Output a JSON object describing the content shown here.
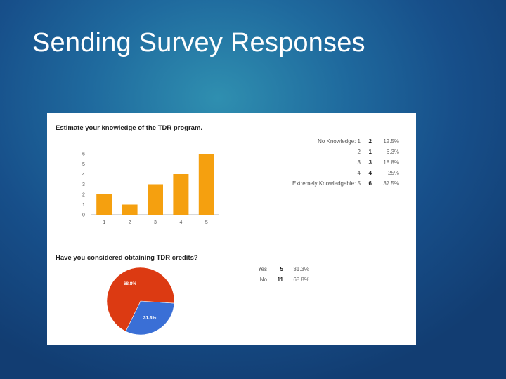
{
  "slide": {
    "title": "Sending Survey Responses"
  },
  "chart_data": [
    {
      "type": "bar",
      "title": "Estimate your knowledge of the TDR program.",
      "categories": [
        "1",
        "2",
        "3",
        "4",
        "5"
      ],
      "values": [
        2,
        1,
        3,
        4,
        6
      ],
      "yticks": [
        "0",
        "1",
        "2",
        "3",
        "4",
        "5",
        "6"
      ],
      "ylim": [
        0,
        6
      ],
      "color": "#f5a00f",
      "summary": [
        {
          "label": "No Knowledge: 1",
          "count": "2",
          "percent": "12.5%"
        },
        {
          "label": "2",
          "count": "1",
          "percent": "6.3%"
        },
        {
          "label": "3",
          "count": "3",
          "percent": "18.8%"
        },
        {
          "label": "4",
          "count": "4",
          "percent": "25%"
        },
        {
          "label": "Extremely Knowledgable: 5",
          "count": "6",
          "percent": "37.5%"
        }
      ]
    },
    {
      "type": "pie",
      "title": "Have you considered obtaining TDR credits?",
      "slices": [
        {
          "label": "Yes",
          "count": "5",
          "percent": "31.3%",
          "value": 5,
          "color": "#3a6fd6"
        },
        {
          "label": "No",
          "count": "11",
          "percent": "68.8%",
          "value": 11,
          "color": "#dc3a12"
        }
      ]
    }
  ]
}
